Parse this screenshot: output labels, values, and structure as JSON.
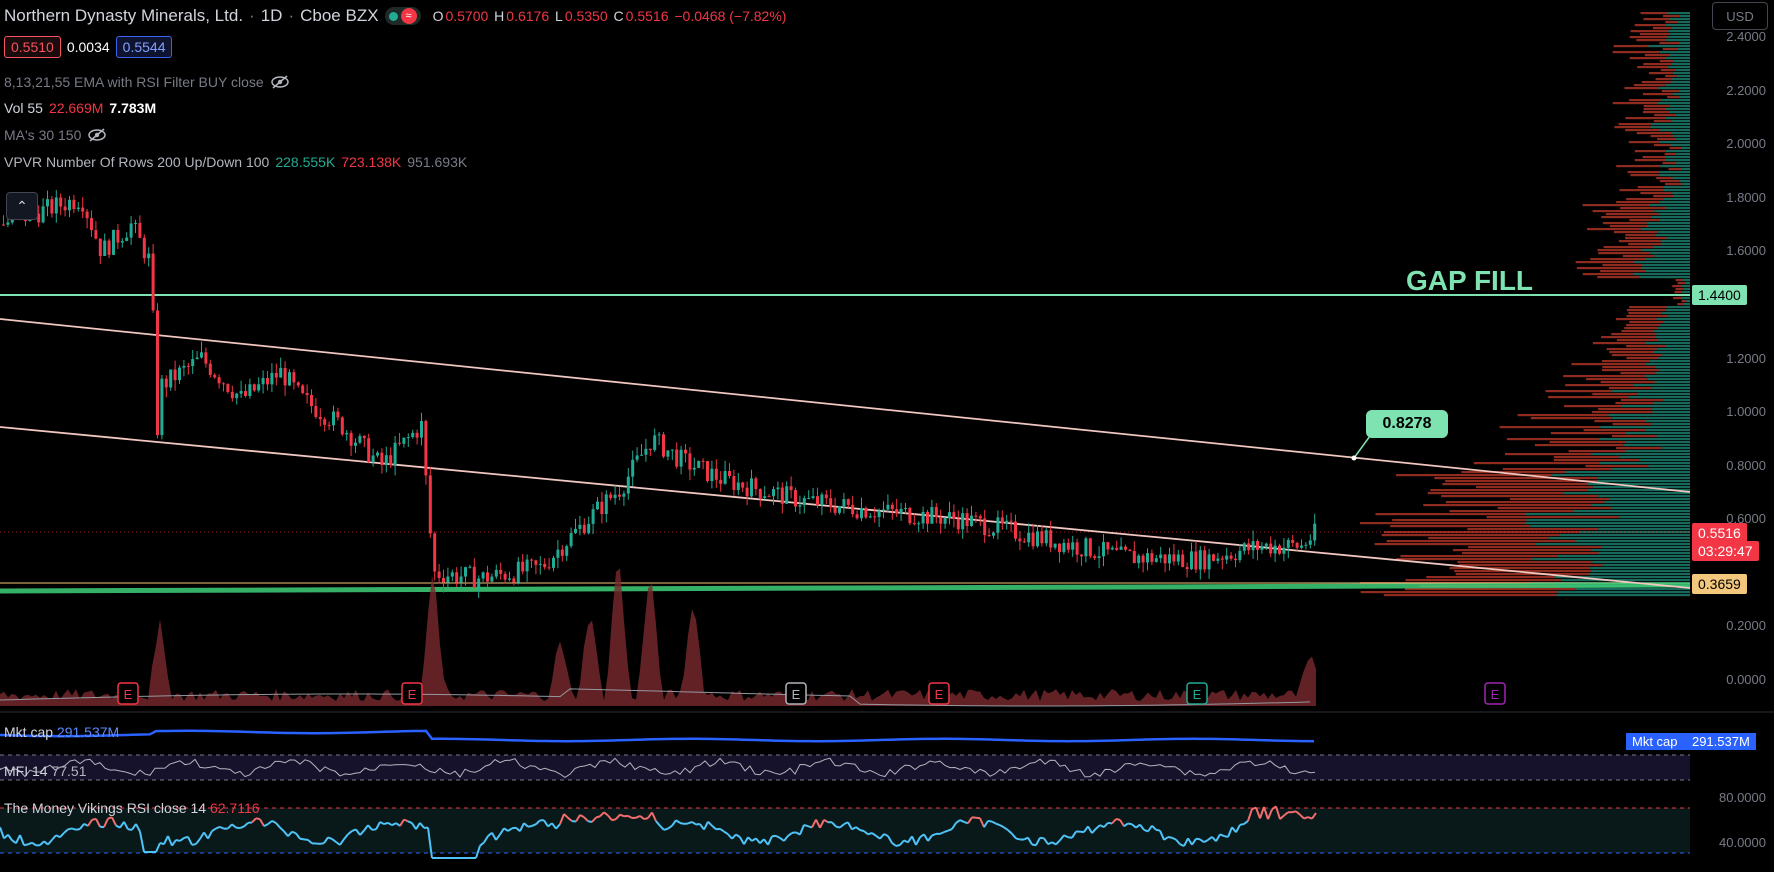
{
  "header": {
    "symbol": "Northern Dynasty Minerals, Ltd.",
    "interval": "1D",
    "exchange": "Cboe BZX",
    "open_label": "O",
    "open": "0.5700",
    "high_label": "H",
    "high": "0.6176",
    "low_label": "L",
    "low": "0.5350",
    "close_label": "C",
    "close": "0.5516",
    "change": "−0.0468 (−7.82%)",
    "bid": "0.5510",
    "spread": "0.0034",
    "ask": "0.5544",
    "currency": "USD",
    "status_icon": "wave-icon"
  },
  "indicators": {
    "ema": {
      "label": "8,13,21,55 EMA with RSI Filter BUY close"
    },
    "vol": {
      "label": "Vol 55",
      "v1": "22.669M",
      "v2": "7.783M"
    },
    "ma": {
      "label": "MA's 30 150"
    },
    "vpvr": {
      "label": "VPVR Number Of Rows 200 Up/Down 100",
      "up": "228.555K",
      "down": "723.138K",
      "total": "951.693K"
    }
  },
  "annotations": {
    "gap_fill": "GAP FILL",
    "target": "0.8278"
  },
  "price_axis": {
    "ticks": [
      "2.4000",
      "2.2000",
      "2.0000",
      "1.8000",
      "1.6000",
      "1.2000",
      "1.0000",
      "0.8000",
      "0.6000",
      "0.2000",
      "0.0000"
    ],
    "level_high": "1.4400",
    "last_price": "0.5516",
    "countdown": "03:29:47",
    "level_low": "0.3659"
  },
  "earnings_marker": "E",
  "panes": {
    "mktcap": {
      "label": "Mkt cap",
      "value": "291.537M",
      "axis_label": "Mkt cap",
      "axis_value": "291.537M"
    },
    "mfi": {
      "label": "MFI 14",
      "value": "77.51"
    },
    "rsi": {
      "label": "The Money Vikings RSI close 14",
      "value": "62.7116",
      "ticks": [
        "80.0000",
        "40.0000"
      ]
    }
  },
  "colors": {
    "up": "#22ab94",
    "down": "#f23645",
    "gap_line": "#7ee3b0",
    "trend": "#f0c8c0",
    "support": "#3fcf7a",
    "mktcap": "#2962ff",
    "rsi": "#4fc3f7"
  }
}
